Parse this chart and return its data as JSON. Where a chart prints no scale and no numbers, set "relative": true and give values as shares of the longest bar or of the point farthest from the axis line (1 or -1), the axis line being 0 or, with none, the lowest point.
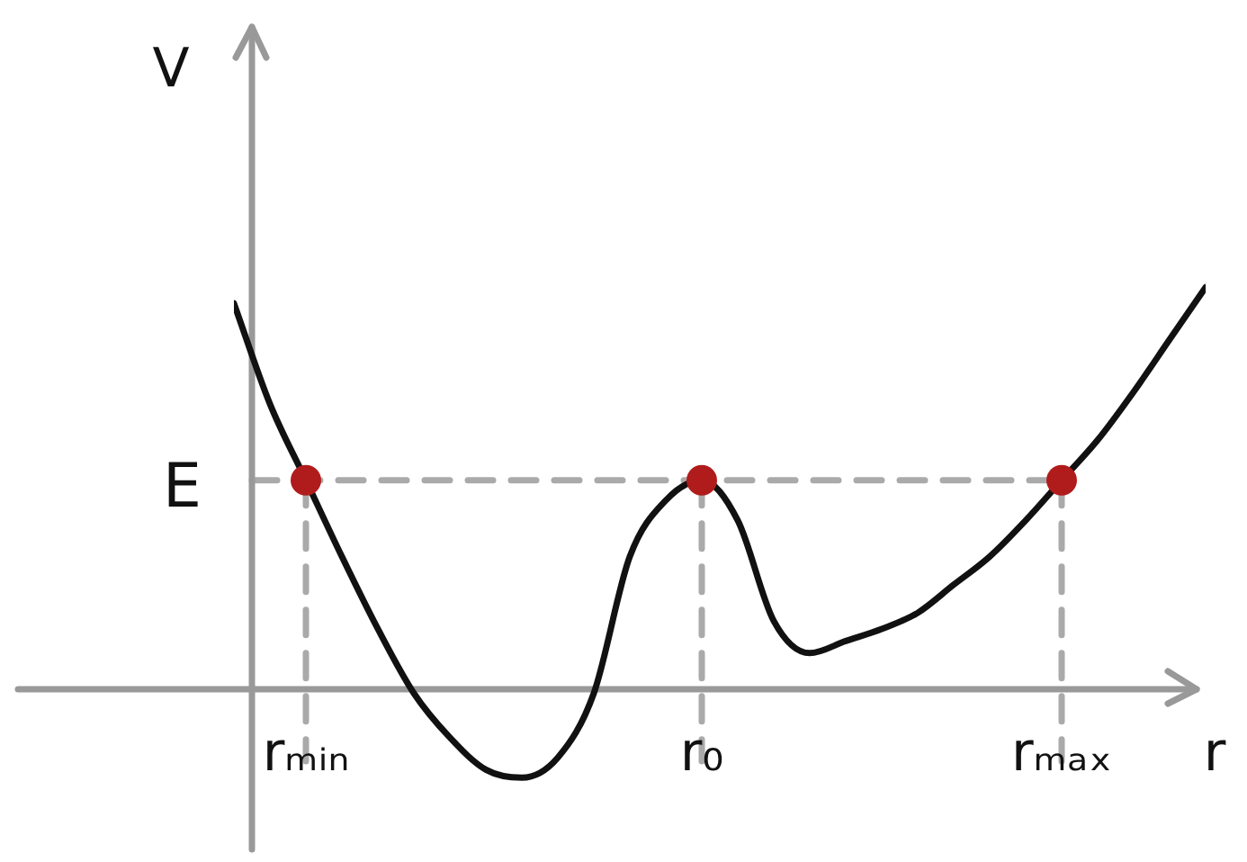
{
  "chart_data": {
    "type": "line",
    "relative": true,
    "xlabel": "r",
    "ylabel": "V",
    "categories": [
      null,
      null,
      "rₘᵢₙ",
      null,
      null,
      null,
      null,
      null,
      null,
      null,
      null,
      null,
      null,
      "r₀",
      null,
      null,
      null,
      null,
      null,
      null,
      null,
      null,
      null,
      "rₘₐₓ",
      null,
      null,
      null,
      null
    ],
    "series": [
      {
        "color": "#111111",
        "values": [
          0.96,
          0.71,
          0.52,
          0.33,
          0.15,
          -0.01,
          -0.12,
          -0.2,
          -0.22,
          -0.17,
          -0.01,
          0.33,
          0.47,
          0.52,
          0.42,
          0.17,
          0.09,
          0.12,
          0.15,
          0.19,
          0.26,
          0.33,
          0.42,
          0.52,
          0.62,
          0.74,
          0.87,
          1
        ]
      },
      {
        "type": "scatter",
        "color": "#b01c1c",
        "x": [
          "rₘᵢₙ",
          "r₀",
          "rₘₐₓ"
        ],
        "values": [
          0.52,
          0.52,
          0.52
        ]
      }
    ],
    "ref_lines": [
      {
        "axis": "y",
        "value": 0.52,
        "label": "E",
        "color": "#aaaaaa",
        "line_style": "dashed"
      },
      {
        "axis": "x",
        "value": "rₘᵢₙ",
        "color": "#aaaaaa",
        "line_style": "dashed"
      },
      {
        "axis": "x",
        "value": "r₀",
        "color": "#aaaaaa",
        "line_style": "dashed"
      },
      {
        "axis": "x",
        "value": "rₘₐₓ",
        "color": "#aaaaaa",
        "line_style": "dashed"
      }
    ],
    "legend": false,
    "line_style": "solid"
  }
}
